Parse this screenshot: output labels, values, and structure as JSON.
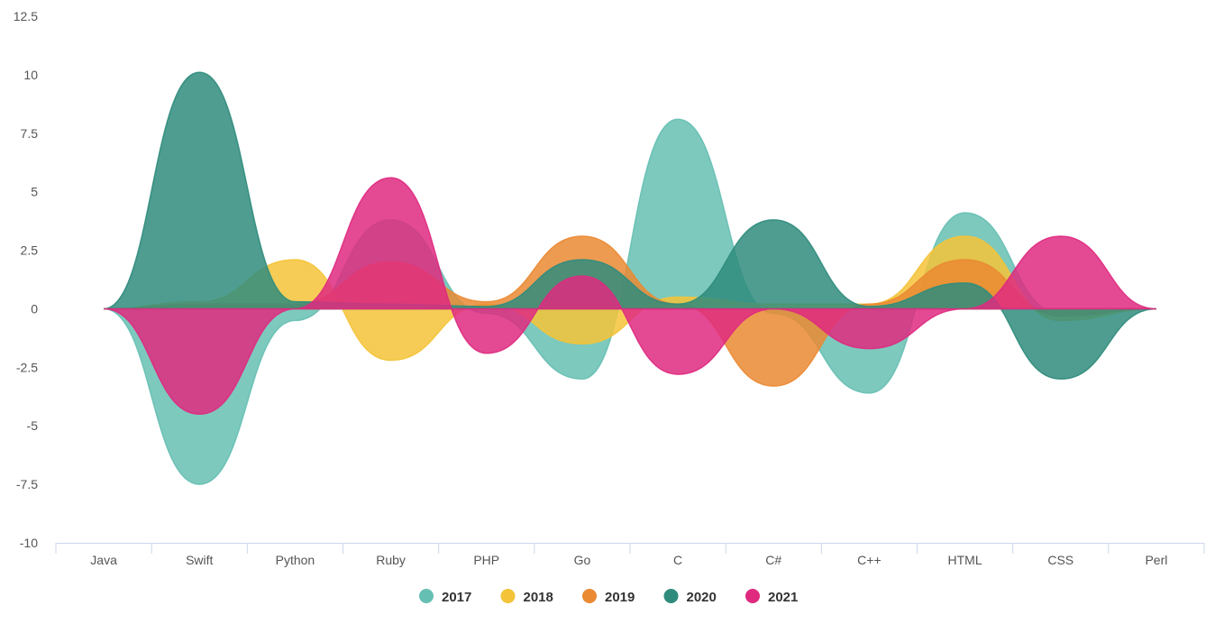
{
  "chart_data": {
    "type": "area",
    "categories": [
      "Java",
      "Swift",
      "Python",
      "Ruby",
      "PHP",
      "Go",
      "C",
      "C#",
      "C++",
      "HTML",
      "CSS",
      "Perl"
    ],
    "ylim": [
      -10,
      12.5
    ],
    "yticks": [
      12.5,
      10,
      7.5,
      5,
      2.5,
      0,
      -2.5,
      -5,
      -7.5,
      -10
    ],
    "ytick_labels": [
      "12.5",
      "10",
      "7.5",
      "5",
      "2.5",
      "0",
      "-2.5",
      "-5",
      "-7.5",
      "-10"
    ],
    "grid": false,
    "legend_position": "bottom",
    "series": [
      {
        "name": "2017",
        "color": "#66bfb3",
        "values": [
          0,
          -7.5,
          -0.5,
          3.8,
          -0.2,
          -3.0,
          8.1,
          -0.2,
          -3.6,
          4.1,
          -0.2,
          0
        ]
      },
      {
        "name": "2018",
        "color": "#f4c338",
        "values": [
          0,
          0.3,
          2.1,
          -2.2,
          0.2,
          -1.5,
          0.5,
          0.2,
          0.2,
          3.1,
          -0.5,
          0
        ]
      },
      {
        "name": "2019",
        "color": "#ea8a33",
        "values": [
          0,
          0.2,
          0.2,
          2.0,
          0.3,
          3.1,
          0.2,
          -3.3,
          0.2,
          2.1,
          -0.3,
          0
        ]
      },
      {
        "name": "2020",
        "color": "#2f8c7d",
        "values": [
          0,
          10.1,
          0.3,
          0.2,
          0.1,
          2.1,
          0.2,
          3.8,
          0.1,
          1.1,
          -3.0,
          0
        ]
      },
      {
        "name": "2021",
        "color": "#df2a80",
        "values": [
          0,
          -4.5,
          0,
          5.6,
          -1.9,
          1.4,
          -2.8,
          0,
          -1.7,
          0,
          3.1,
          0
        ]
      }
    ]
  }
}
